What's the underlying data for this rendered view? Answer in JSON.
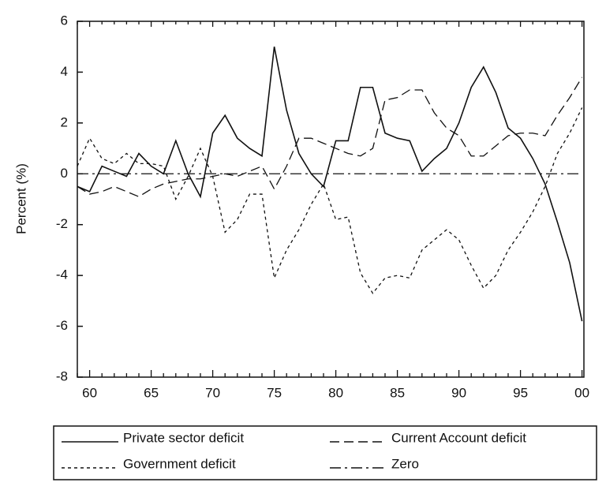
{
  "chart_data": {
    "type": "line",
    "y_label": "Percent (%)",
    "categories": [
      null,
      "60",
      null,
      null,
      null,
      null,
      "65",
      null,
      null,
      null,
      null,
      "70",
      null,
      null,
      null,
      null,
      "75",
      null,
      null,
      null,
      null,
      "80",
      null,
      null,
      null,
      null,
      "85",
      null,
      null,
      null,
      null,
      "90",
      null,
      null,
      null,
      null,
      "95",
      null,
      null,
      null,
      null,
      "00"
    ],
    "ylim": [
      -8,
      6
    ],
    "yticks": [
      -8,
      -6,
      -4,
      -2,
      0,
      2,
      4,
      6
    ],
    "legend": "bottom",
    "series": [
      {
        "name": "Private sector deficit",
        "color": "#111111",
        "style": "solid",
        "values": [
          -0.5,
          -0.7,
          0.3,
          0.1,
          -0.1,
          0.8,
          0.3,
          0.0,
          1.3,
          0.0,
          -0.9,
          1.6,
          2.3,
          1.4,
          1.0,
          0.7,
          5.0,
          2.5,
          0.8,
          0.0,
          -0.5,
          1.3,
          1.3,
          3.4,
          3.4,
          1.6,
          1.4,
          1.3,
          0.1,
          0.6,
          1.0,
          2.0,
          3.4,
          4.2,
          3.2,
          1.8,
          1.4,
          0.6,
          -0.4,
          -1.9,
          -3.5,
          -5.8
        ]
      },
      {
        "name": "Current Account deficit",
        "color": "#111111",
        "style": "dashed",
        "values": [
          -0.5,
          -0.8,
          -0.7,
          -0.5,
          -0.7,
          -0.9,
          -0.6,
          -0.4,
          -0.3,
          -0.2,
          -0.2,
          -0.1,
          0.0,
          -0.1,
          0.1,
          0.3,
          -0.6,
          0.3,
          1.4,
          1.4,
          1.2,
          1.0,
          0.8,
          0.7,
          1.0,
          2.9,
          3.0,
          3.3,
          3.3,
          2.4,
          1.8,
          1.5,
          0.7,
          0.7,
          1.1,
          1.5,
          1.6,
          1.6,
          1.5,
          2.3,
          3.0,
          3.8
        ]
      },
      {
        "name": "Government deficit",
        "color": "#111111",
        "style": "dotted",
        "values": [
          0.3,
          1.4,
          0.6,
          0.4,
          0.8,
          0.4,
          0.4,
          0.3,
          -1.0,
          -0.1,
          1.0,
          -0.1,
          -2.3,
          -1.8,
          -0.8,
          -0.8,
          -4.1,
          -3.0,
          -2.2,
          -1.2,
          -0.4,
          -1.8,
          -1.7,
          -3.9,
          -4.7,
          -4.1,
          -4.0,
          -4.1,
          -3.0,
          -2.6,
          -2.2,
          -2.6,
          -3.6,
          -4.5,
          -4.0,
          -3.0,
          -2.3,
          -1.5,
          -0.5,
          0.8,
          1.6,
          2.6
        ]
      },
      {
        "name": "Zero",
        "color": "#111111",
        "style": "dashdot",
        "values": [
          0,
          0,
          0,
          0,
          0,
          0,
          0,
          0,
          0,
          0,
          0,
          0,
          0,
          0,
          0,
          0,
          0,
          0,
          0,
          0,
          0,
          0,
          0,
          0,
          0,
          0,
          0,
          0,
          0,
          0,
          0,
          0,
          0,
          0,
          0,
          0,
          0,
          0,
          0,
          0,
          0,
          0
        ]
      }
    ]
  }
}
